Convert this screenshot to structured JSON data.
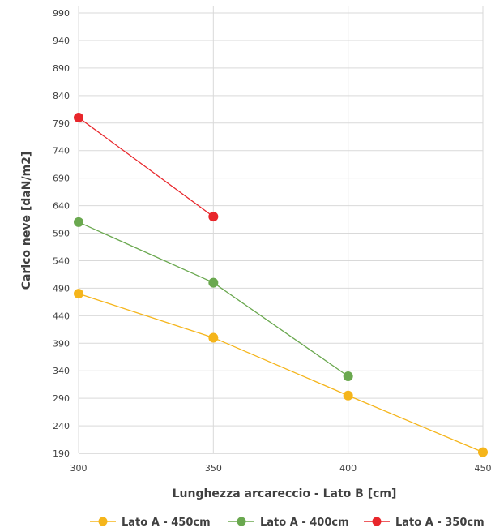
{
  "chart_data": {
    "type": "line",
    "title": "",
    "xlabel": "Lunghezza arcareccio - Lato B [cm]",
    "ylabel": "Carico neve [daN/m2]",
    "x_ticks": [
      300,
      350,
      400,
      450
    ],
    "y_ticks": [
      190,
      240,
      290,
      340,
      390,
      440,
      490,
      540,
      590,
      640,
      690,
      740,
      790,
      840,
      890,
      940,
      990
    ],
    "xlim": [
      300,
      450
    ],
    "ylim": [
      190,
      1000
    ],
    "grid": "vertical and horizontal",
    "legend_position": "bottom",
    "series": [
      {
        "name": "Lato A - 450cm",
        "color": "#F5B51B",
        "points": [
          [
            300,
            480
          ],
          [
            350,
            400
          ],
          [
            400,
            295
          ],
          [
            450,
            192
          ]
        ]
      },
      {
        "name": "Lato A - 400cm",
        "color": "#6AA84F",
        "points": [
          [
            300,
            610
          ],
          [
            350,
            500
          ],
          [
            400,
            330
          ]
        ]
      },
      {
        "name": "Lato A - 350cm",
        "color": "#E8262B",
        "points": [
          [
            300,
            800
          ],
          [
            350,
            620
          ]
        ]
      }
    ]
  }
}
